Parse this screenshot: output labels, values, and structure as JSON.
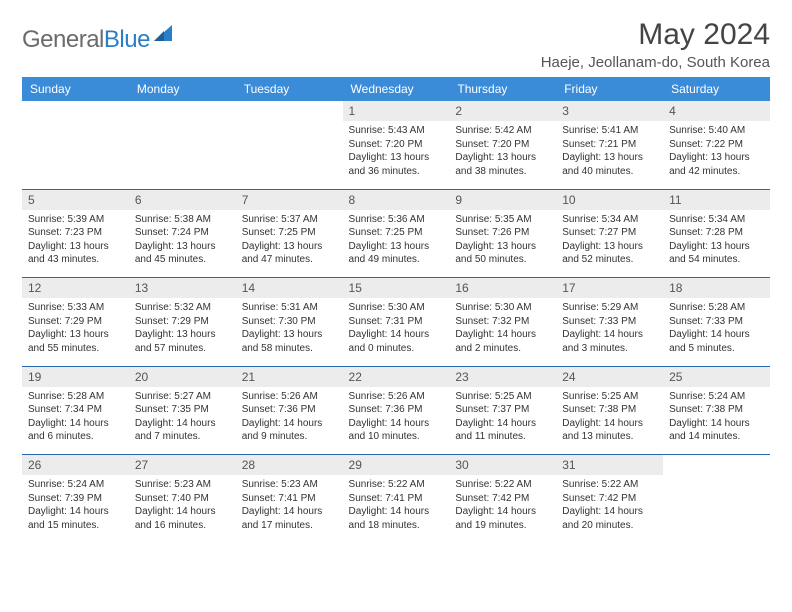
{
  "brand": {
    "gray": "General",
    "blue": "Blue"
  },
  "title": "May 2024",
  "location": "Haeje, Jeollanam-do, South Korea",
  "day_headers": [
    "Sunday",
    "Monday",
    "Tuesday",
    "Wednesday",
    "Thursday",
    "Friday",
    "Saturday"
  ],
  "colors": {
    "header_bg": "#3a8bd8",
    "header_text": "#ffffff",
    "daynum_bg": "#ececec",
    "row_divider": "#2a6bb0",
    "logo_gray": "#6b6b6b",
    "logo_blue": "#2a7fc9"
  },
  "weeks": [
    [
      {
        "empty": true
      },
      {
        "empty": true
      },
      {
        "empty": true
      },
      {
        "day": "1",
        "sunrise": "Sunrise: 5:43 AM",
        "sunset": "Sunset: 7:20 PM",
        "day1": "Daylight: 13 hours",
        "day2": "and 36 minutes."
      },
      {
        "day": "2",
        "sunrise": "Sunrise: 5:42 AM",
        "sunset": "Sunset: 7:20 PM",
        "day1": "Daylight: 13 hours",
        "day2": "and 38 minutes."
      },
      {
        "day": "3",
        "sunrise": "Sunrise: 5:41 AM",
        "sunset": "Sunset: 7:21 PM",
        "day1": "Daylight: 13 hours",
        "day2": "and 40 minutes."
      },
      {
        "day": "4",
        "sunrise": "Sunrise: 5:40 AM",
        "sunset": "Sunset: 7:22 PM",
        "day1": "Daylight: 13 hours",
        "day2": "and 42 minutes."
      }
    ],
    [
      {
        "day": "5",
        "sunrise": "Sunrise: 5:39 AM",
        "sunset": "Sunset: 7:23 PM",
        "day1": "Daylight: 13 hours",
        "day2": "and 43 minutes."
      },
      {
        "day": "6",
        "sunrise": "Sunrise: 5:38 AM",
        "sunset": "Sunset: 7:24 PM",
        "day1": "Daylight: 13 hours",
        "day2": "and 45 minutes."
      },
      {
        "day": "7",
        "sunrise": "Sunrise: 5:37 AM",
        "sunset": "Sunset: 7:25 PM",
        "day1": "Daylight: 13 hours",
        "day2": "and 47 minutes."
      },
      {
        "day": "8",
        "sunrise": "Sunrise: 5:36 AM",
        "sunset": "Sunset: 7:25 PM",
        "day1": "Daylight: 13 hours",
        "day2": "and 49 minutes."
      },
      {
        "day": "9",
        "sunrise": "Sunrise: 5:35 AM",
        "sunset": "Sunset: 7:26 PM",
        "day1": "Daylight: 13 hours",
        "day2": "and 50 minutes."
      },
      {
        "day": "10",
        "sunrise": "Sunrise: 5:34 AM",
        "sunset": "Sunset: 7:27 PM",
        "day1": "Daylight: 13 hours",
        "day2": "and 52 minutes."
      },
      {
        "day": "11",
        "sunrise": "Sunrise: 5:34 AM",
        "sunset": "Sunset: 7:28 PM",
        "day1": "Daylight: 13 hours",
        "day2": "and 54 minutes."
      }
    ],
    [
      {
        "day": "12",
        "sunrise": "Sunrise: 5:33 AM",
        "sunset": "Sunset: 7:29 PM",
        "day1": "Daylight: 13 hours",
        "day2": "and 55 minutes."
      },
      {
        "day": "13",
        "sunrise": "Sunrise: 5:32 AM",
        "sunset": "Sunset: 7:29 PM",
        "day1": "Daylight: 13 hours",
        "day2": "and 57 minutes."
      },
      {
        "day": "14",
        "sunrise": "Sunrise: 5:31 AM",
        "sunset": "Sunset: 7:30 PM",
        "day1": "Daylight: 13 hours",
        "day2": "and 58 minutes."
      },
      {
        "day": "15",
        "sunrise": "Sunrise: 5:30 AM",
        "sunset": "Sunset: 7:31 PM",
        "day1": "Daylight: 14 hours",
        "day2": "and 0 minutes."
      },
      {
        "day": "16",
        "sunrise": "Sunrise: 5:30 AM",
        "sunset": "Sunset: 7:32 PM",
        "day1": "Daylight: 14 hours",
        "day2": "and 2 minutes."
      },
      {
        "day": "17",
        "sunrise": "Sunrise: 5:29 AM",
        "sunset": "Sunset: 7:33 PM",
        "day1": "Daylight: 14 hours",
        "day2": "and 3 minutes."
      },
      {
        "day": "18",
        "sunrise": "Sunrise: 5:28 AM",
        "sunset": "Sunset: 7:33 PM",
        "day1": "Daylight: 14 hours",
        "day2": "and 5 minutes."
      }
    ],
    [
      {
        "day": "19",
        "sunrise": "Sunrise: 5:28 AM",
        "sunset": "Sunset: 7:34 PM",
        "day1": "Daylight: 14 hours",
        "day2": "and 6 minutes."
      },
      {
        "day": "20",
        "sunrise": "Sunrise: 5:27 AM",
        "sunset": "Sunset: 7:35 PM",
        "day1": "Daylight: 14 hours",
        "day2": "and 7 minutes."
      },
      {
        "day": "21",
        "sunrise": "Sunrise: 5:26 AM",
        "sunset": "Sunset: 7:36 PM",
        "day1": "Daylight: 14 hours",
        "day2": "and 9 minutes."
      },
      {
        "day": "22",
        "sunrise": "Sunrise: 5:26 AM",
        "sunset": "Sunset: 7:36 PM",
        "day1": "Daylight: 14 hours",
        "day2": "and 10 minutes."
      },
      {
        "day": "23",
        "sunrise": "Sunrise: 5:25 AM",
        "sunset": "Sunset: 7:37 PM",
        "day1": "Daylight: 14 hours",
        "day2": "and 11 minutes."
      },
      {
        "day": "24",
        "sunrise": "Sunrise: 5:25 AM",
        "sunset": "Sunset: 7:38 PM",
        "day1": "Daylight: 14 hours",
        "day2": "and 13 minutes."
      },
      {
        "day": "25",
        "sunrise": "Sunrise: 5:24 AM",
        "sunset": "Sunset: 7:38 PM",
        "day1": "Daylight: 14 hours",
        "day2": "and 14 minutes."
      }
    ],
    [
      {
        "day": "26",
        "sunrise": "Sunrise: 5:24 AM",
        "sunset": "Sunset: 7:39 PM",
        "day1": "Daylight: 14 hours",
        "day2": "and 15 minutes."
      },
      {
        "day": "27",
        "sunrise": "Sunrise: 5:23 AM",
        "sunset": "Sunset: 7:40 PM",
        "day1": "Daylight: 14 hours",
        "day2": "and 16 minutes."
      },
      {
        "day": "28",
        "sunrise": "Sunrise: 5:23 AM",
        "sunset": "Sunset: 7:41 PM",
        "day1": "Daylight: 14 hours",
        "day2": "and 17 minutes."
      },
      {
        "day": "29",
        "sunrise": "Sunrise: 5:22 AM",
        "sunset": "Sunset: 7:41 PM",
        "day1": "Daylight: 14 hours",
        "day2": "and 18 minutes."
      },
      {
        "day": "30",
        "sunrise": "Sunrise: 5:22 AM",
        "sunset": "Sunset: 7:42 PM",
        "day1": "Daylight: 14 hours",
        "day2": "and 19 minutes."
      },
      {
        "day": "31",
        "sunrise": "Sunrise: 5:22 AM",
        "sunset": "Sunset: 7:42 PM",
        "day1": "Daylight: 14 hours",
        "day2": "and 20 minutes."
      },
      {
        "empty": true
      }
    ]
  ]
}
